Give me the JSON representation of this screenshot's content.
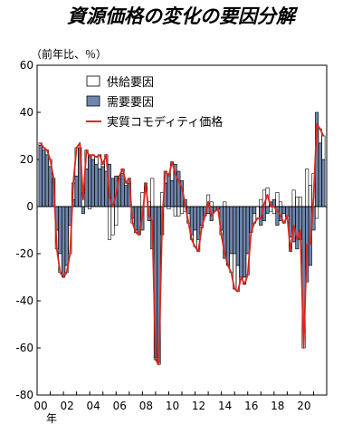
{
  "chart_data": {
    "type": "bar",
    "title": "資源価格の変化の要因分解",
    "unit_label": "（前年比、％）",
    "xlabel_suffix": "年",
    "ylim": [
      -80,
      60
    ],
    "yticks": [
      "60",
      "40",
      "20",
      "0",
      "-20",
      "-40",
      "-60",
      "-80"
    ],
    "xtick_labels": [
      "00",
      "02",
      "04",
      "06",
      "08",
      "10",
      "12",
      "14",
      "16",
      "18",
      "20"
    ],
    "x_range": [
      2000,
      2022
    ],
    "bar_width_years": 0.25,
    "legend": [
      "供給要因",
      "需要要因",
      "実質コモディティ価格"
    ],
    "colors": {
      "supply": "#ffffff",
      "demand": "#6f86ac",
      "line": "#d9261c"
    },
    "x": [
      2000.25,
      2000.5,
      2000.75,
      2001,
      2001.25,
      2001.5,
      2001.75,
      2002,
      2002.25,
      2002.5,
      2002.75,
      2003,
      2003.25,
      2003.5,
      2003.75,
      2004,
      2004.25,
      2004.5,
      2004.75,
      2005,
      2005.25,
      2005.5,
      2005.75,
      2006,
      2006.25,
      2006.5,
      2006.75,
      2007,
      2007.25,
      2007.5,
      2007.75,
      2008,
      2008.25,
      2008.5,
      2008.75,
      2009,
      2009.25,
      2009.5,
      2009.75,
      2010,
      2010.25,
      2010.5,
      2010.75,
      2011,
      2011.25,
      2011.5,
      2011.75,
      2012,
      2012.25,
      2012.5,
      2012.75,
      2013,
      2013.25,
      2013.5,
      2013.75,
      2014,
      2014.25,
      2014.5,
      2014.75,
      2015,
      2015.25,
      2015.5,
      2015.75,
      2016,
      2016.25,
      2016.5,
      2016.75,
      2017,
      2017.25,
      2017.5,
      2017.75,
      2018,
      2018.25,
      2018.5,
      2018.75,
      2019,
      2019.25,
      2019.5,
      2019.75,
      2020,
      2020.25,
      2020.5,
      2020.75,
      2021,
      2021.25,
      2021.5,
      2021.75
    ],
    "series": [
      {
        "name": "需要要因",
        "values": [
          26,
          24,
          22,
          17,
          12,
          -10,
          -20,
          -29,
          -25,
          -8,
          3,
          13,
          25,
          -3,
          16,
          22,
          20,
          18,
          16,
          17,
          15,
          18,
          12,
          13,
          12,
          14,
          9,
          10,
          -5,
          -10,
          -12,
          -10,
          0,
          -6,
          -18,
          -64,
          -66,
          -12,
          10,
          14,
          11,
          18,
          15,
          11,
          3,
          -3,
          -12,
          -10,
          -14,
          -8,
          -4,
          -3,
          -6,
          -2,
          -1,
          -10,
          -22,
          -25,
          -20,
          -20,
          -25,
          -30,
          -30,
          -20,
          -11,
          -3,
          0,
          -8,
          -6,
          -3,
          2,
          3,
          -8,
          -6,
          -3,
          -4,
          -13,
          -15,
          -18,
          -14,
          -52,
          -32,
          -25,
          -10,
          40,
          27,
          20
        ]
      },
      {
        "name": "供給要因",
        "values": [
          1,
          1,
          2,
          3,
          0,
          -8,
          -8,
          -1,
          -3,
          -12,
          7,
          12,
          0,
          6,
          8,
          -1,
          2,
          3,
          6,
          1,
          7,
          -14,
          -12,
          -8,
          1,
          2,
          1,
          2,
          -2,
          -1,
          0,
          6,
          10,
          2,
          12,
          -1,
          -1,
          6,
          5,
          -1,
          8,
          -4,
          -4,
          -3,
          -2,
          -4,
          -2,
          -7,
          -5,
          -1,
          0,
          5,
          2,
          0,
          0,
          -2,
          2,
          0,
          -8,
          -15,
          -11,
          0,
          -3,
          -9,
          0,
          -4,
          -5,
          3,
          7,
          8,
          -2,
          -3,
          6,
          2,
          -4,
          0,
          -6,
          7,
          4,
          4,
          -8,
          16,
          9,
          14,
          -5,
          6,
          10
        ]
      },
      {
        "name": "実質コモディティ価格",
        "values": [
          27,
          25,
          24,
          20,
          12,
          -18,
          -28,
          -30,
          -28,
          -20,
          10,
          25,
          27,
          3,
          24,
          21,
          22,
          21,
          22,
          18,
          22,
          4,
          0,
          5,
          13,
          16,
          10,
          12,
          -7,
          -11,
          -12,
          -4,
          10,
          -4,
          -6,
          -65,
          -67,
          -6,
          15,
          13,
          19,
          14,
          11,
          8,
          1,
          -7,
          -14,
          -17,
          -19,
          -9,
          -4,
          2,
          -4,
          -2,
          -1,
          -12,
          -20,
          -25,
          -28,
          -35,
          -36,
          -30,
          -33,
          -29,
          -11,
          -7,
          -5,
          -5,
          1,
          5,
          0,
          0,
          -2,
          -4,
          -7,
          -4,
          -19,
          -8,
          -14,
          -10,
          -60,
          -16,
          -16,
          4,
          35,
          33,
          30
        ]
      }
    ]
  }
}
